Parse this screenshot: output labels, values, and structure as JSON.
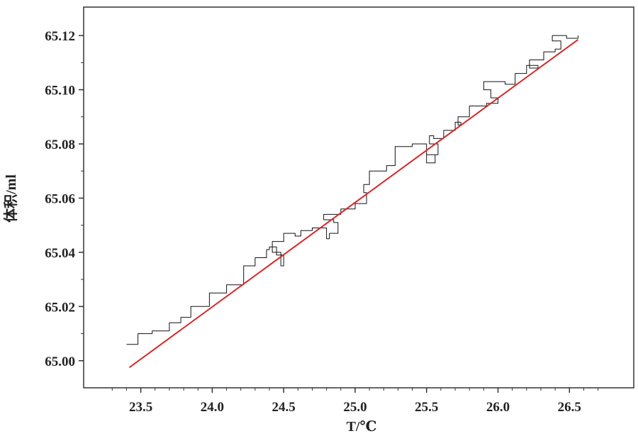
{
  "chart_data": {
    "type": "line",
    "title": "",
    "xlabel": "T/℃",
    "ylabel": "体积/ml",
    "xlim": [
      23.1,
      26.95
    ],
    "ylim": [
      64.99,
      65.1305
    ],
    "x_ticks": [
      "23.5",
      "24.0",
      "24.5",
      "25.0",
      "25.5",
      "26.0",
      "26.5"
    ],
    "y_ticks": [
      "65.00",
      "65.02",
      "65.04",
      "65.06",
      "65.08",
      "65.10",
      "65.12"
    ],
    "grid": false,
    "legend": "none",
    "series": [
      {
        "style": "measured",
        "color": "#111111",
        "x": [
          23.4,
          23.48,
          23.58,
          23.7,
          23.78,
          23.85,
          23.98,
          24.1,
          24.22,
          24.3,
          24.38,
          24.4,
          24.45,
          24.5,
          24.48,
          24.42,
          24.5,
          24.58,
          24.62,
          24.7,
          24.8,
          24.82,
          24.88,
          24.85,
          24.78,
          24.9,
          25.0,
          25.08,
          25.06,
          25.1,
          25.22,
          25.28,
          25.4,
          25.5,
          25.56,
          25.5,
          25.58,
          25.52,
          25.55,
          25.62,
          25.7,
          25.74,
          25.72,
          25.8,
          25.92,
          26.0,
          25.95,
          25.9,
          26.05,
          26.12,
          26.2,
          26.28,
          26.22,
          26.32,
          26.4,
          26.44,
          26.38,
          26.48,
          26.56
        ],
        "y": [
          65.006,
          65.01,
          65.011,
          65.014,
          65.016,
          65.02,
          65.025,
          65.028,
          65.035,
          65.038,
          65.041,
          65.042,
          65.039,
          65.035,
          65.04,
          65.044,
          65.047,
          65.046,
          65.048,
          65.049,
          65.045,
          65.047,
          65.051,
          65.052,
          65.054,
          65.056,
          65.058,
          65.062,
          65.065,
          65.07,
          65.072,
          65.079,
          65.08,
          65.076,
          65.073,
          65.076,
          65.08,
          65.083,
          65.082,
          65.085,
          65.088,
          65.087,
          65.09,
          65.094,
          65.095,
          65.097,
          65.1,
          65.103,
          65.102,
          65.106,
          65.109,
          65.108,
          65.111,
          65.114,
          65.115,
          65.118,
          65.12,
          65.119,
          65.12
        ]
      },
      {
        "style": "fit",
        "color": "#d62728",
        "x": [
          23.42,
          26.56
        ],
        "y": [
          64.9975,
          65.1185
        ]
      }
    ]
  }
}
